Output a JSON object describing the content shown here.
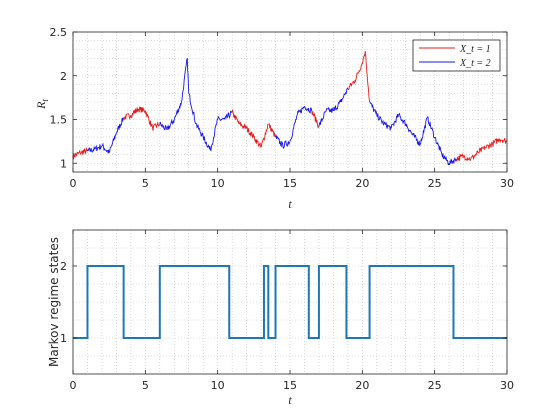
{
  "colors": {
    "regime1": "#e51c1c",
    "regime2": "#1717e8",
    "state_line": "#1f77b4",
    "axis": "#262626",
    "grid": "#bfbfbf"
  },
  "chart_data": [
    {
      "type": "line",
      "xlabel": "t",
      "ylabel": "R_t",
      "xlim": [
        0,
        30
      ],
      "ylim": [
        0.9,
        2.5
      ],
      "xticks": [
        "0",
        "5",
        "10",
        "15",
        "20",
        "25",
        "30"
      ],
      "yticks": [
        "1",
        "1.5",
        "2",
        "2.5"
      ],
      "grid": "minor-dotted",
      "legend_position": "top-right",
      "legend": [
        "X_t = 1",
        "X_t = 2"
      ],
      "series": [
        {
          "name": "X_t = 1 / X_t = 2 (colored by regime)",
          "x": [
            0,
            0.5,
            1,
            1.5,
            2,
            2.5,
            3,
            3.5,
            4,
            4.5,
            5,
            5.5,
            6,
            6.5,
            7,
            7.5,
            7.9,
            8,
            8.5,
            9,
            9.5,
            10,
            10.5,
            11,
            11.5,
            12,
            12.5,
            13,
            13.5,
            14,
            14.5,
            15,
            15.5,
            16,
            16.5,
            17,
            17.5,
            18,
            18.5,
            19,
            19.5,
            20,
            20.2,
            20.5,
            21,
            21.5,
            22,
            22.5,
            23,
            23.5,
            24,
            24.5,
            25,
            25.5,
            26,
            26.5,
            27,
            27.5,
            28,
            28.5,
            29,
            29.5,
            30
          ],
          "values": [
            1.08,
            1.12,
            1.14,
            1.16,
            1.2,
            1.12,
            1.35,
            1.52,
            1.55,
            1.62,
            1.6,
            1.4,
            1.45,
            1.38,
            1.5,
            1.7,
            2.2,
            1.8,
            1.45,
            1.3,
            1.15,
            1.5,
            1.5,
            1.58,
            1.45,
            1.4,
            1.3,
            1.18,
            1.45,
            1.3,
            1.2,
            1.25,
            1.55,
            1.65,
            1.6,
            1.42,
            1.6,
            1.6,
            1.7,
            1.85,
            1.95,
            2.15,
            2.28,
            1.7,
            1.55,
            1.45,
            1.4,
            1.55,
            1.45,
            1.32,
            1.22,
            1.52,
            1.3,
            1.1,
            1.0,
            1.05,
            1.08,
            1.05,
            1.12,
            1.18,
            1.22,
            1.28,
            1.25
          ],
          "states": [
            1,
            1,
            2,
            2,
            2,
            2,
            2,
            1,
            1,
            1,
            1,
            1,
            2,
            2,
            2,
            2,
            2,
            2,
            2,
            2,
            2,
            2,
            2,
            1,
            1,
            1,
            1,
            1,
            1,
            2,
            2,
            2,
            2,
            2,
            1,
            2,
            2,
            2,
            2,
            1,
            1,
            1,
            1,
            2,
            2,
            2,
            2,
            2,
            2,
            2,
            2,
            2,
            2,
            2,
            2,
            1,
            1,
            1,
            1,
            1,
            1,
            1,
            1
          ]
        }
      ]
    },
    {
      "type": "line",
      "xlabel": "t",
      "ylabel": "Markov regime states",
      "xlim": [
        0,
        30
      ],
      "ylim": [
        0.5,
        2.5
      ],
      "xticks": [
        "0",
        "5",
        "10",
        "15",
        "20",
        "25",
        "30"
      ],
      "yticks": [
        "1",
        "2"
      ],
      "grid": "minor-dotted",
      "series": [
        {
          "x": [
            0,
            1.0,
            3.5,
            6.0,
            10.8,
            13.2,
            13.5,
            14.0,
            16.3,
            17.0,
            18.9,
            20.5,
            26.3,
            30
          ],
          "values": [
            1,
            2,
            1,
            2,
            1,
            2,
            1,
            2,
            1,
            2,
            1,
            2,
            1,
            1
          ]
        }
      ]
    }
  ]
}
